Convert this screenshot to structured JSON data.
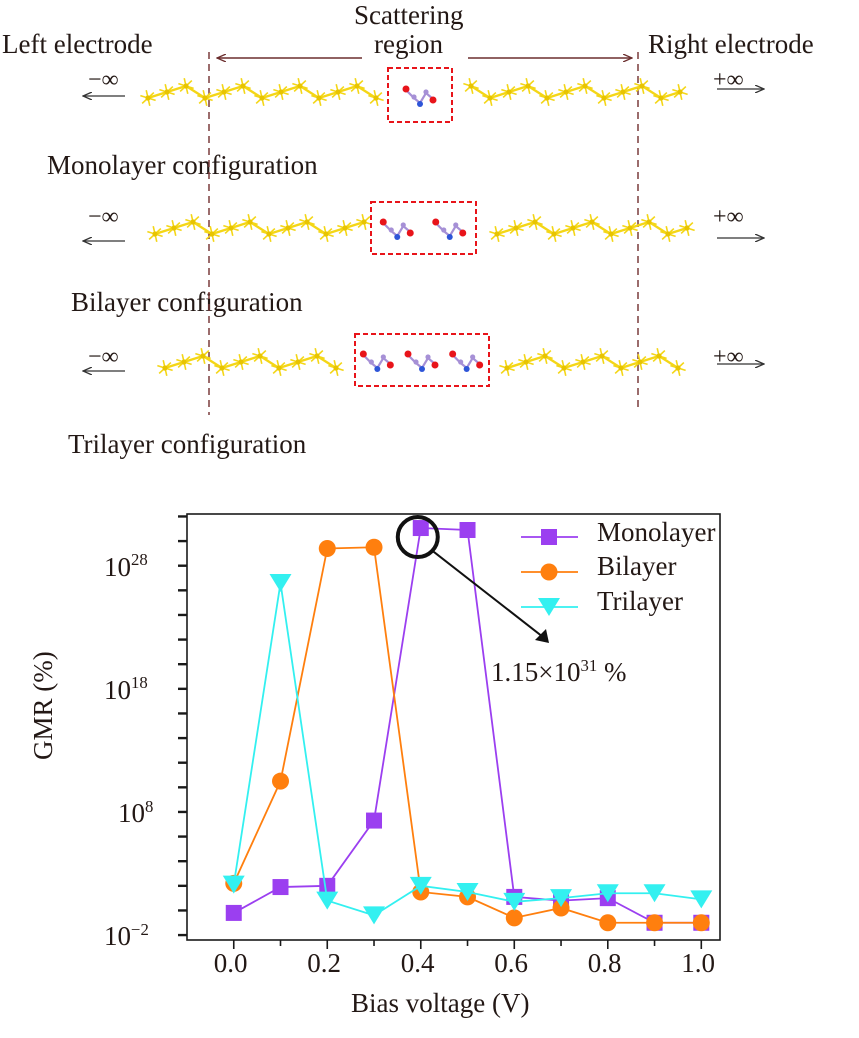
{
  "schematic": {
    "left_electrode": "Left electrode",
    "right_electrode": "Right electrode",
    "scattering_line1": "Scattering",
    "scattering_line2": "region",
    "minus_inf": "−∞",
    "plus_inf": "+∞",
    "configurations": [
      {
        "label": "Monolayer configuration",
        "molecules": 1
      },
      {
        "label": "Bilayer configuration",
        "molecules": 2
      },
      {
        "label": "Trilayer configuration",
        "molecules": 3
      }
    ],
    "colors": {
      "chain": "#f4d616",
      "box": "#e8141a",
      "divider": "#7a3b3b",
      "oxygen": "#e8141a",
      "nitrogen": "#2e55d8",
      "carbon": "#a690d6"
    }
  },
  "chart_data": {
    "type": "line",
    "xlabel": "Bias voltage (V)",
    "ylabel": "GMR (%)",
    "yscale": "log",
    "xlim": [
      -0.1,
      1.04
    ],
    "ylim_log10": [
      -2.4,
      32.2
    ],
    "xticks": [
      "0.0",
      "0.2",
      "0.4",
      "0.6",
      "0.8",
      "1.0"
    ],
    "xtick_values": [
      0.0,
      0.2,
      0.4,
      0.6,
      0.8,
      1.0
    ],
    "yticks": [
      {
        "base": "10",
        "exp": "28",
        "log10": 28
      },
      {
        "base": "10",
        "exp": "18",
        "log10": 18
      },
      {
        "base": "10",
        "exp": "8",
        "log10": 8
      },
      {
        "base": "10",
        "exp": "−2",
        "log10": -2
      }
    ],
    "x": [
      0.0,
      0.1,
      0.2,
      0.3,
      0.4,
      0.5,
      0.6,
      0.7,
      0.8,
      0.9,
      1.0
    ],
    "series": [
      {
        "name": "Monolayer",
        "color": "#9b3ff0",
        "marker": "square",
        "log10_values": [
          -0.2,
          1.9,
          2.0,
          7.3,
          31.06,
          30.9,
          1.1,
          0.8,
          1.0,
          -1.0,
          -1.0
        ]
      },
      {
        "name": "Bilayer",
        "color": "#ff7f0e",
        "marker": "circle",
        "log10_values": [
          2.2,
          10.5,
          29.4,
          29.5,
          1.5,
          1.1,
          -0.6,
          0.2,
          -1.0,
          -1.0,
          -1.0
        ]
      },
      {
        "name": "Trilayer",
        "color": "#33f0f0",
        "marker": "triangle-down",
        "log10_values": [
          2.1,
          26.6,
          0.8,
          -0.4,
          2.0,
          1.5,
          0.7,
          1.0,
          1.4,
          1.4,
          0.9
        ]
      }
    ],
    "legend_position": "top-right",
    "annotation": {
      "mantissa": "1.15×10",
      "exp": "31",
      "unit": " %",
      "points_to_x": 0.4,
      "series": "Monolayer"
    }
  }
}
